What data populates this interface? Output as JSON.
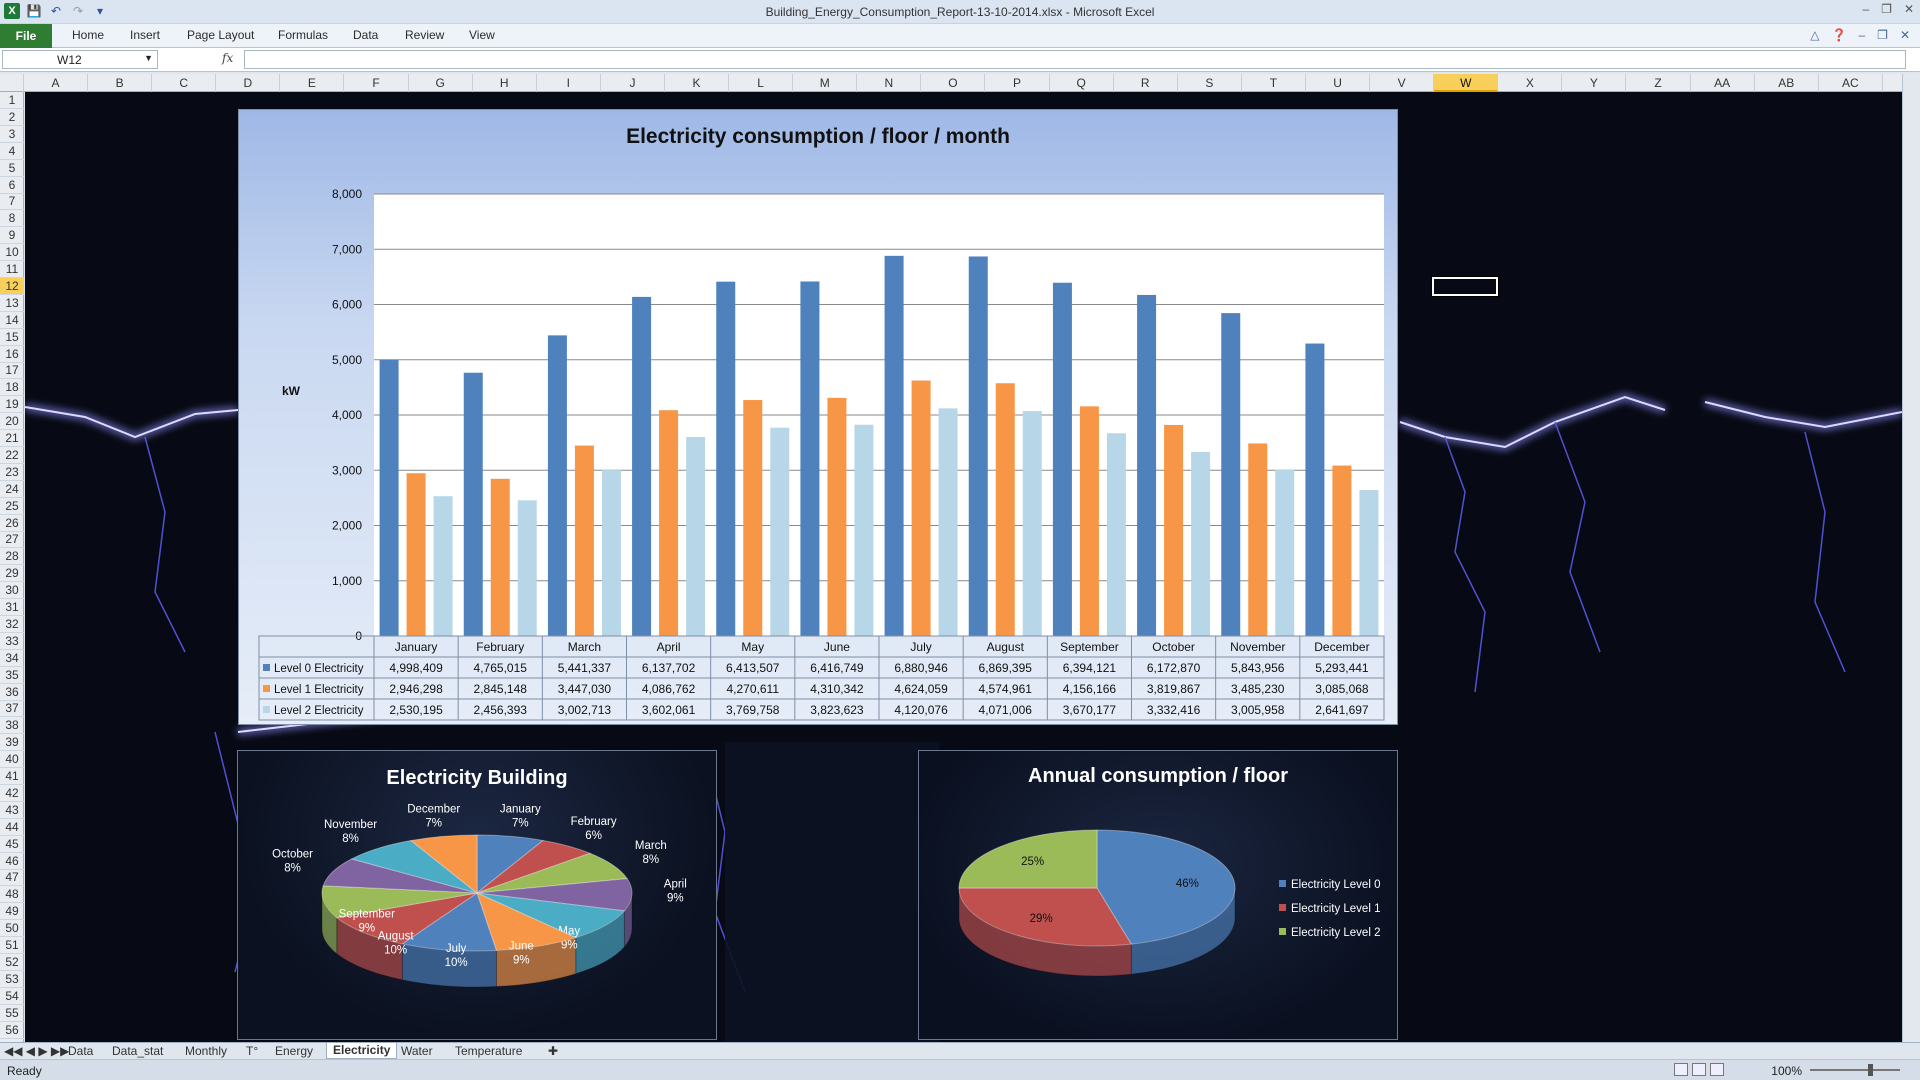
{
  "window": {
    "title": "Building_Energy_Consumption_Report-13-10-2014.xlsx - Microsoft Excel"
  },
  "ribbon": {
    "file": "File",
    "tabs": [
      "Home",
      "Insert",
      "Page Layout",
      "Formulas",
      "Data",
      "Review",
      "View"
    ]
  },
  "formula_bar": {
    "name_box": "W12",
    "fx": "fx",
    "content": ""
  },
  "columns": [
    "A",
    "B",
    "C",
    "D",
    "E",
    "F",
    "G",
    "H",
    "I",
    "J",
    "K",
    "L",
    "M",
    "N",
    "O",
    "P",
    "Q",
    "R",
    "S",
    "T",
    "U",
    "V",
    "W",
    "X",
    "Y",
    "Z",
    "AA",
    "AB",
    "AC"
  ],
  "selected_column": "W",
  "selected_row": "12",
  "rows": [
    "1",
    "2",
    "3",
    "4",
    "5",
    "6",
    "7",
    "8",
    "9",
    "10",
    "11",
    "12",
    "13",
    "14",
    "15",
    "16",
    "17",
    "18",
    "19",
    "20",
    "21",
    "22",
    "23",
    "24",
    "25",
    "26",
    "27",
    "28",
    "29",
    "30",
    "31",
    "32",
    "33",
    "34",
    "35",
    "36",
    "37",
    "38",
    "39",
    "40",
    "41",
    "42",
    "43",
    "44",
    "45",
    "46",
    "47",
    "48",
    "49",
    "50",
    "51",
    "52",
    "53",
    "54",
    "55",
    "56"
  ],
  "sheet_tabs": [
    "Data",
    "Data_stat",
    "Monthly",
    "T°",
    "Energy",
    "Electricity",
    "Water",
    "Temperature"
  ],
  "active_sheet": "Electricity",
  "status": {
    "ready": "Ready",
    "zoom": "100%"
  },
  "colors": {
    "level0": "#4f81bd",
    "level1": "#f79646",
    "level2": "#b7d7e8",
    "accent_green": "#2f7d32"
  },
  "chart_data": [
    {
      "type": "bar",
      "title": "Electricity consumption / floor / month",
      "ylabel": "kW",
      "ylim": [
        0,
        8000
      ],
      "yticks": [
        "0",
        "1,000",
        "2,000",
        "3,000",
        "4,000",
        "5,000",
        "6,000",
        "7,000",
        "8,000"
      ],
      "categories": [
        "January",
        "February",
        "March",
        "April",
        "May",
        "June",
        "July",
        "August",
        "September",
        "October",
        "November",
        "December"
      ],
      "grid": true,
      "series": [
        {
          "name": "Level 0 Electricity",
          "values": [
            4998.409,
            4765.015,
            5441.337,
            6137.702,
            6413.507,
            6416.749,
            6880.946,
            6869.395,
            6394.121,
            6172.87,
            5843.956,
            5293.441
          ],
          "labels": [
            "4,998,409",
            "4,765,015",
            "5,441,337",
            "6,137,702",
            "6,413,507",
            "6,416,749",
            "6,880,946",
            "6,869,395",
            "6,394,121",
            "6,172,870",
            "5,843,956",
            "5,293,441"
          ]
        },
        {
          "name": "Level 1 Electricity",
          "values": [
            2946.298,
            2845.148,
            3447.03,
            4086.762,
            4270.611,
            4310.342,
            4624.059,
            4574.961,
            4156.166,
            3819.867,
            3485.23,
            3085.068
          ],
          "labels": [
            "2,946,298",
            "2,845,148",
            "3,447,030",
            "4,086,762",
            "4,270,611",
            "4,310,342",
            "4,624,059",
            "4,574,961",
            "4,156,166",
            "3,819,867",
            "3,485,230",
            "3,085,068"
          ]
        },
        {
          "name": "Level 2 Electricity",
          "values": [
            2530.195,
            2456.393,
            3002.713,
            3602.061,
            3769.758,
            3823.623,
            4120.076,
            4071.006,
            3670.177,
            3332.416,
            3005.958,
            2641.697
          ],
          "labels": [
            "2,530,195",
            "2,456,393",
            "3,002,713",
            "3,602,061",
            "3,769,758",
            "3,823,623",
            "4,120,076",
            "4,071,006",
            "3,670,177",
            "3,332,416",
            "3,005,958",
            "2,641,697"
          ]
        }
      ]
    },
    {
      "type": "pie",
      "title": "Electricity Building",
      "slices": [
        {
          "label": "January",
          "value": 7,
          "pct": "7%",
          "color": "#4f81bd"
        },
        {
          "label": "February",
          "value": 6,
          "pct": "6%",
          "color": "#c0504d"
        },
        {
          "label": "March",
          "value": 8,
          "pct": "8%",
          "color": "#9bbb59"
        },
        {
          "label": "April",
          "value": 9,
          "pct": "9%",
          "color": "#8064a2"
        },
        {
          "label": "May",
          "value": 9,
          "pct": "9%",
          "color": "#4bacc6"
        },
        {
          "label": "June",
          "value": 9,
          "pct": "9%",
          "color": "#f79646"
        },
        {
          "label": "July",
          "value": 10,
          "pct": "10%",
          "color": "#4f81bd"
        },
        {
          "label": "August",
          "value": 10,
          "pct": "10%",
          "color": "#c0504d"
        },
        {
          "label": "September",
          "value": 9,
          "pct": "9%",
          "color": "#9bbb59"
        },
        {
          "label": "October",
          "value": 8,
          "pct": "8%",
          "color": "#8064a2"
        },
        {
          "label": "November",
          "value": 8,
          "pct": "8%",
          "color": "#4bacc6"
        },
        {
          "label": "December",
          "value": 7,
          "pct": "7%",
          "color": "#f79646"
        }
      ]
    },
    {
      "type": "pie",
      "title": "Annual consumption / floor",
      "legend": "right",
      "slices": [
        {
          "label": "Electricity Level 0",
          "value": 46,
          "pct": "46%",
          "color": "#4f81bd"
        },
        {
          "label": "Electricity Level 1",
          "value": 29,
          "pct": "29%",
          "color": "#c0504d"
        },
        {
          "label": "Electricity Level 2",
          "value": 25,
          "pct": "25%",
          "color": "#9bbb59"
        }
      ]
    }
  ]
}
